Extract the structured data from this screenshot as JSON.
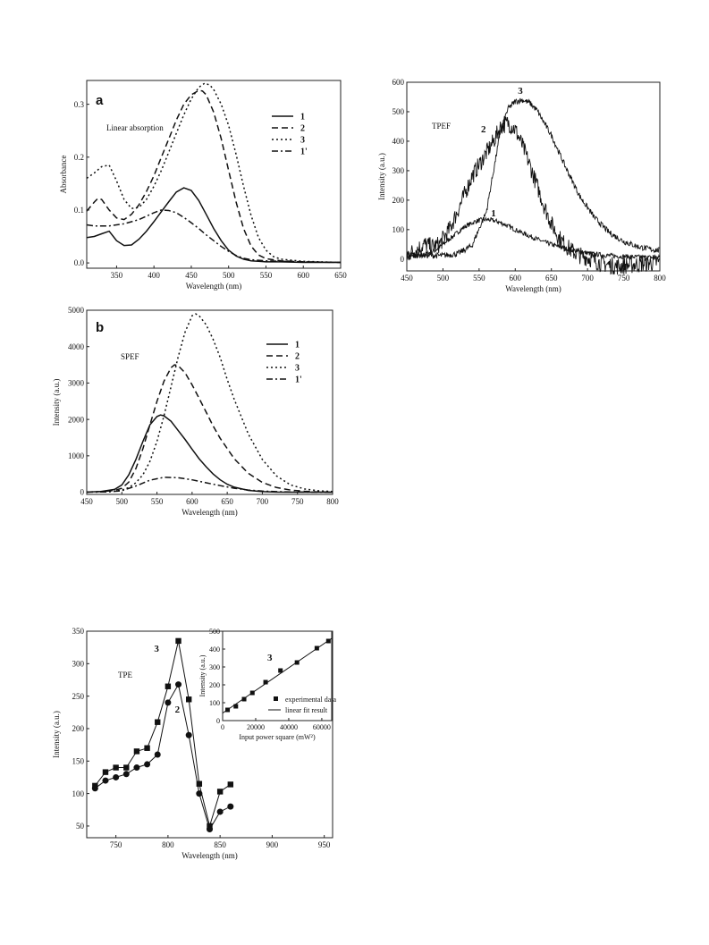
{
  "chart_data": [
    {
      "id": "absorption",
      "type": "line",
      "panel_label": "a",
      "annotation": "Linear absorption",
      "xlabel": "Wavelength (nm)",
      "ylabel": "Absorbance",
      "xlim": [
        310,
        650
      ],
      "ylim": [
        -0.01,
        0.345
      ],
      "xticks": [
        350,
        400,
        450,
        500,
        550,
        600,
        650
      ],
      "yticks": [
        0.0,
        0.1,
        0.2,
        0.3
      ],
      "ytick_labels": [
        "0.0",
        "0.1",
        "0.2",
        "0.3"
      ],
      "legend_position": "top-right",
      "series": [
        {
          "name": "1",
          "dash": "",
          "x": [
            310,
            320,
            330,
            340,
            350,
            360,
            370,
            380,
            390,
            400,
            410,
            420,
            430,
            440,
            450,
            460,
            470,
            480,
            490,
            500,
            510,
            520,
            530,
            540,
            550,
            570,
            600,
            650
          ],
          "y": [
            0.048,
            0.05,
            0.055,
            0.06,
            0.042,
            0.033,
            0.034,
            0.045,
            0.06,
            0.078,
            0.097,
            0.116,
            0.134,
            0.142,
            0.137,
            0.118,
            0.092,
            0.065,
            0.042,
            0.024,
            0.013,
            0.007,
            0.004,
            0.003,
            0.002,
            0.002,
            0.001,
            0.001
          ]
        },
        {
          "name": "2",
          "dash": "7,4",
          "x": [
            310,
            320,
            325,
            330,
            340,
            350,
            360,
            370,
            380,
            390,
            400,
            410,
            420,
            430,
            440,
            450,
            460,
            465,
            470,
            480,
            490,
            500,
            510,
            520,
            530,
            540,
            550,
            570,
            600,
            650
          ],
          "y": [
            0.098,
            0.115,
            0.122,
            0.12,
            0.1,
            0.085,
            0.082,
            0.092,
            0.11,
            0.135,
            0.165,
            0.2,
            0.235,
            0.27,
            0.3,
            0.318,
            0.326,
            0.325,
            0.318,
            0.285,
            0.235,
            0.175,
            0.115,
            0.065,
            0.032,
            0.015,
            0.008,
            0.004,
            0.002,
            0.001
          ]
        },
        {
          "name": "3",
          "dash": "2,3",
          "x": [
            310,
            320,
            330,
            340,
            350,
            360,
            370,
            380,
            390,
            400,
            410,
            420,
            430,
            440,
            450,
            460,
            468,
            475,
            480,
            490,
            500,
            510,
            520,
            530,
            540,
            550,
            560,
            570,
            600,
            650
          ],
          "y": [
            0.16,
            0.17,
            0.182,
            0.185,
            0.155,
            0.12,
            0.103,
            0.105,
            0.12,
            0.145,
            0.175,
            0.21,
            0.245,
            0.28,
            0.31,
            0.332,
            0.34,
            0.336,
            0.328,
            0.3,
            0.26,
            0.205,
            0.145,
            0.09,
            0.048,
            0.024,
            0.012,
            0.007,
            0.003,
            0.001
          ]
        },
        {
          "name": "1'",
          "dash": "7,3,2,3",
          "x": [
            310,
            320,
            340,
            360,
            380,
            400,
            410,
            420,
            430,
            440,
            450,
            460,
            470,
            480,
            490,
            500,
            510,
            520,
            530,
            540,
            550,
            570,
            600,
            650
          ],
          "y": [
            0.072,
            0.07,
            0.07,
            0.074,
            0.082,
            0.095,
            0.1,
            0.099,
            0.095,
            0.086,
            0.076,
            0.065,
            0.053,
            0.042,
            0.031,
            0.022,
            0.014,
            0.009,
            0.006,
            0.005,
            0.004,
            0.003,
            0.002,
            0.001
          ]
        }
      ]
    },
    {
      "id": "tpef",
      "type": "line",
      "annotation": "TPEF",
      "xlabel": "Wavelength (nm)",
      "ylabel": "Intensity (a.u.)",
      "xlim": [
        450,
        800
      ],
      "ylim": [
        -40,
        600
      ],
      "xticks": [
        450,
        500,
        550,
        600,
        650,
        700,
        750,
        800
      ],
      "yticks": [
        0,
        100,
        200,
        300,
        400,
        500,
        600
      ],
      "series": [
        {
          "name": "1",
          "x": [
            450,
            470,
            490,
            510,
            530,
            545,
            555,
            565,
            575,
            585,
            600,
            620,
            640,
            660,
            680,
            700,
            720,
            740,
            760,
            780,
            800
          ],
          "y": [
            8,
            12,
            30,
            70,
            110,
            128,
            134,
            133,
            128,
            118,
            100,
            78,
            58,
            42,
            30,
            20,
            14,
            10,
            8,
            6,
            5
          ],
          "noise": 8
        },
        {
          "name": "2",
          "x": [
            450,
            465,
            475,
            485,
            495,
            510,
            525,
            540,
            555,
            570,
            580,
            590,
            600,
            610,
            620,
            630,
            640,
            650,
            660,
            670,
            680,
            690,
            700,
            720,
            740,
            760,
            780,
            800
          ],
          "y": [
            15,
            35,
            50,
            42,
            50,
            105,
            190,
            280,
            340,
            400,
            450,
            462,
            440,
            385,
            320,
            250,
            180,
            120,
            75,
            45,
            25,
            12,
            5,
            -15,
            -25,
            -20,
            -15,
            -10
          ],
          "noise": 30
        },
        {
          "name": "3",
          "x": [
            450,
            480,
            500,
            520,
            540,
            560,
            570,
            580,
            590,
            600,
            610,
            620,
            630,
            650,
            670,
            690,
            710,
            730,
            750,
            770,
            790,
            800
          ],
          "y": [
            15,
            12,
            12,
            18,
            45,
            160,
            300,
            440,
            510,
            535,
            540,
            530,
            505,
            420,
            310,
            210,
            140,
            90,
            60,
            42,
            32,
            30
          ],
          "noise": 10
        }
      ],
      "series_labels": [
        {
          "text": "1",
          "x": 570,
          "y": 145
        },
        {
          "text": "2",
          "x": 556,
          "y": 430
        },
        {
          "text": "3",
          "x": 607,
          "y": 560
        }
      ]
    },
    {
      "id": "spef",
      "type": "line",
      "panel_label": "b",
      "annotation": "SPEF",
      "xlabel": "Wavelength (nm)",
      "ylabel": "Intensity (a.u.)",
      "xlim": [
        450,
        800
      ],
      "ylim": [
        -60,
        5000
      ],
      "xticks": [
        450,
        500,
        550,
        600,
        650,
        700,
        750,
        800
      ],
      "yticks": [
        0,
        1000,
        2000,
        3000,
        4000,
        5000
      ],
      "legend_position": "top-right",
      "series": [
        {
          "name": "1",
          "dash": "",
          "x": [
            450,
            470,
            490,
            500,
            510,
            520,
            530,
            540,
            550,
            555,
            560,
            570,
            580,
            590,
            600,
            610,
            620,
            630,
            640,
            650,
            660,
            680,
            700,
            720,
            740,
            760,
            780,
            800
          ],
          "y": [
            5,
            20,
            80,
            200,
            480,
            900,
            1400,
            1850,
            2080,
            2120,
            2100,
            1950,
            1700,
            1450,
            1180,
            920,
            700,
            500,
            340,
            220,
            140,
            50,
            15,
            5,
            2,
            1,
            1,
            0
          ]
        },
        {
          "name": "2",
          "dash": "7,4",
          "x": [
            450,
            470,
            490,
            500,
            510,
            520,
            530,
            540,
            550,
            560,
            570,
            575,
            580,
            590,
            600,
            610,
            620,
            630,
            640,
            660,
            680,
            700,
            720,
            740,
            760,
            780,
            800
          ],
          "y": [
            5,
            15,
            50,
            110,
            280,
            650,
            1200,
            1850,
            2500,
            3050,
            3420,
            3500,
            3480,
            3280,
            2950,
            2580,
            2200,
            1820,
            1480,
            920,
            520,
            270,
            130,
            60,
            25,
            10,
            5
          ]
        },
        {
          "name": "3",
          "dash": "2,3",
          "x": [
            450,
            470,
            490,
            500,
            510,
            520,
            530,
            540,
            550,
            560,
            570,
            580,
            590,
            600,
            605,
            610,
            620,
            630,
            640,
            650,
            660,
            680,
            700,
            720,
            740,
            760,
            780,
            800
          ],
          "y": [
            5,
            12,
            30,
            60,
            130,
            260,
            480,
            850,
            1400,
            2100,
            2900,
            3700,
            4400,
            4850,
            4900,
            4850,
            4600,
            4200,
            3700,
            3100,
            2550,
            1600,
            900,
            450,
            200,
            90,
            40,
            20
          ]
        },
        {
          "name": "1'",
          "dash": "7,3,2,3",
          "x": [
            450,
            480,
            500,
            520,
            540,
            560,
            580,
            600,
            620,
            640,
            660,
            680,
            700,
            720,
            740,
            760,
            780,
            800
          ],
          "y": [
            2,
            10,
            40,
            170,
            330,
            410,
            400,
            340,
            260,
            180,
            110,
            60,
            30,
            15,
            8,
            4,
            2,
            1
          ]
        }
      ]
    },
    {
      "id": "tpe",
      "type": "line",
      "annotation": "TPE",
      "xlabel": "Wavelength (nm)",
      "ylabel": "Intensity (a.u.)",
      "xlim": [
        722,
        958
      ],
      "ylim": [
        32,
        350
      ],
      "xticks": [
        750,
        800,
        850,
        900,
        950
      ],
      "yticks": [
        50,
        100,
        150,
        200,
        250,
        300,
        350
      ],
      "series": [
        {
          "name": "3",
          "marker": "square",
          "x": [
            730,
            740,
            750,
            760,
            770,
            780,
            790,
            800,
            810,
            820,
            830,
            840,
            850,
            860
          ],
          "y": [
            112,
            133,
            140,
            140,
            165,
            170,
            210,
            265,
            335,
            245,
            115,
            50,
            103,
            114
          ]
        },
        {
          "name": "2",
          "marker": "circle",
          "x": [
            730,
            740,
            750,
            760,
            770,
            780,
            790,
            800,
            810,
            820,
            830,
            840,
            850,
            860
          ],
          "y": [
            108,
            120,
            125,
            130,
            140,
            145,
            160,
            240,
            268,
            190,
            100,
            45,
            72,
            80
          ]
        }
      ],
      "series_labels": [
        {
          "text": "3",
          "x": 789,
          "y": 318
        },
        {
          "text": "2",
          "x": 809,
          "y": 225
        }
      ]
    },
    {
      "id": "tpe-inset",
      "type": "scatter",
      "annotation": "3",
      "xlabel": "Input power square (mW²)",
      "ylabel": "Intensity (a.u.)",
      "xlim": [
        0,
        66000
      ],
      "ylim": [
        0,
        500
      ],
      "xticks": [
        0,
        20000,
        40000,
        60000
      ],
      "yticks": [
        0,
        100,
        200,
        300,
        400,
        500
      ],
      "legend_position": "bottom-right",
      "legend": {
        "points": "experimental data",
        "line": "linear fit result"
      },
      "points": {
        "x": [
          3000,
          8000,
          13000,
          18000,
          26000,
          35000,
          45000,
          57000,
          64000
        ],
        "y": [
          60,
          80,
          120,
          155,
          215,
          280,
          325,
          405,
          445
        ]
      },
      "fit": {
        "x": [
          0,
          66000
        ],
        "y": [
          42,
          460
        ]
      }
    }
  ]
}
